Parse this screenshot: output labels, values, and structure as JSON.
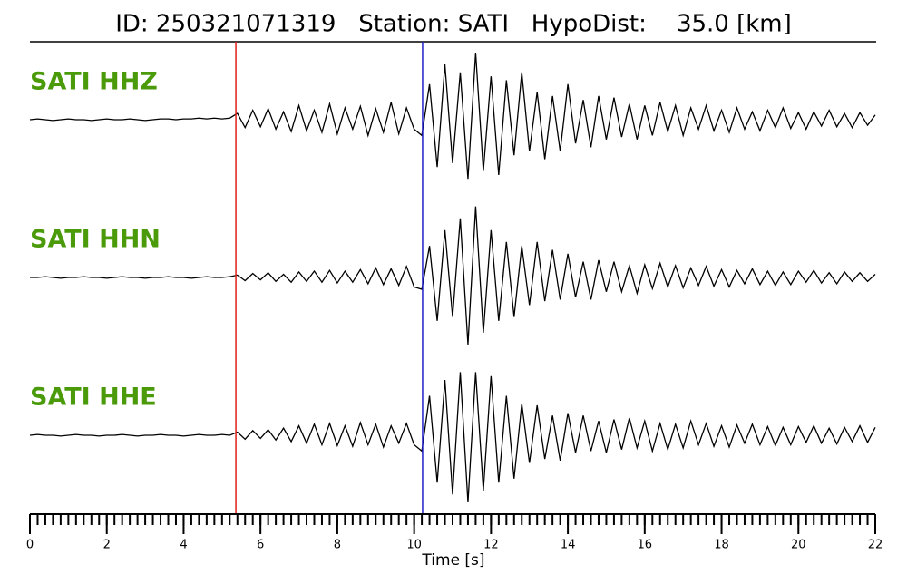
{
  "chart_data": {
    "type": "seismogram",
    "title": "ID: 250321071319   Station: SATI   HypoDist:    35.0 [km]",
    "xlabel": "Time [s]",
    "xlim": [
      0,
      22
    ],
    "xticks": [
      0,
      2,
      4,
      6,
      8,
      10,
      12,
      14,
      16,
      18,
      20,
      22
    ],
    "minor_tick_step": 0.2,
    "ylim": [
      -100,
      100
    ],
    "label_color": "#4a9a0a",
    "markers": [
      {
        "x": 5.36,
        "color": "#e0201b"
      },
      {
        "x": 10.22,
        "color": "#2020c8"
      }
    ],
    "x": [
      0,
      0.2,
      0.4,
      0.6,
      0.8,
      1,
      1.2,
      1.4,
      1.6,
      1.8,
      2,
      2.2,
      2.4,
      2.6,
      2.8,
      3,
      3.2,
      3.4,
      3.6,
      3.8,
      4,
      4.2,
      4.4,
      4.6,
      4.8,
      5,
      5.2,
      5.4,
      5.6,
      5.8,
      6,
      6.2,
      6.4,
      6.6,
      6.8,
      7,
      7.2,
      7.4,
      7.6,
      7.8,
      8,
      8.2,
      8.4,
      8.6,
      8.8,
      9,
      9.2,
      9.4,
      9.6,
      9.8,
      10,
      10.2,
      10.4,
      10.6,
      10.8,
      11,
      11.2,
      11.4,
      11.6,
      11.8,
      12,
      12.2,
      12.4,
      12.6,
      12.8,
      13,
      13.2,
      13.4,
      13.6,
      13.8,
      14,
      14.2,
      14.4,
      14.6,
      14.8,
      15,
      15.2,
      15.4,
      15.6,
      15.8,
      16,
      16.2,
      16.4,
      16.6,
      16.8,
      17,
      17.2,
      17.4,
      17.6,
      17.8,
      18,
      18.2,
      18.4,
      18.6,
      18.8,
      19,
      19.2,
      19.4,
      19.6,
      19.8,
      20,
      20.2,
      20.4,
      20.6,
      20.8,
      21,
      21.2,
      21.4,
      21.6,
      21.8,
      22
    ],
    "series": [
      {
        "name": "SATI HHZ",
        "color": "#000000",
        "values": [
          0,
          1,
          0,
          -1,
          0,
          1,
          0,
          0,
          -1,
          0,
          1,
          0,
          0,
          1,
          0,
          -1,
          0,
          1,
          1,
          0,
          1,
          1,
          2,
          1,
          2,
          1,
          2,
          8,
          -10,
          12,
          -9,
          14,
          -12,
          10,
          -15,
          18,
          -14,
          12,
          -16,
          20,
          -18,
          15,
          -12,
          17,
          -20,
          14,
          -16,
          22,
          -18,
          15,
          -12,
          -20,
          45,
          -60,
          70,
          -55,
          60,
          -75,
          85,
          -65,
          55,
          -70,
          50,
          -45,
          60,
          -40,
          35,
          -50,
          30,
          -40,
          45,
          -30,
          25,
          -35,
          30,
          -25,
          28,
          -22,
          20,
          -25,
          18,
          -20,
          22,
          -15,
          18,
          -20,
          15,
          -12,
          18,
          -14,
          12,
          -16,
          15,
          -12,
          10,
          -14,
          12,
          -10,
          15,
          -11,
          9,
          -12,
          10,
          -8,
          12,
          -9,
          8,
          -10,
          9,
          -7,
          6
        ]
      },
      {
        "name": "SATI HHN",
        "color": "#000000",
        "values": [
          0,
          0,
          1,
          0,
          -1,
          0,
          0,
          1,
          0,
          0,
          -1,
          0,
          1,
          0,
          0,
          -1,
          0,
          0,
          1,
          0,
          0,
          -1,
          0,
          1,
          0,
          0,
          1,
          3,
          -4,
          5,
          -3,
          6,
          -5,
          4,
          -6,
          7,
          -5,
          8,
          -6,
          9,
          -7,
          8,
          -6,
          10,
          -8,
          12,
          -9,
          11,
          -10,
          14,
          -12,
          -15,
          40,
          -55,
          60,
          -50,
          75,
          -85,
          90,
          -70,
          60,
          -55,
          45,
          -50,
          40,
          -35,
          45,
          -30,
          35,
          -28,
          30,
          -25,
          20,
          -28,
          22,
          -18,
          20,
          -18,
          15,
          -20,
          16,
          -14,
          18,
          -12,
          15,
          -13,
          12,
          -10,
          14,
          -11,
          10,
          -12,
          9,
          -8,
          11,
          -9,
          8,
          -10,
          7,
          -9,
          8,
          -6,
          9,
          -7,
          6,
          -8,
          7,
          -5,
          6,
          -5,
          4
        ]
      },
      {
        "name": "SATI HHE",
        "color": "#000000",
        "values": [
          0,
          1,
          0,
          0,
          -1,
          0,
          1,
          0,
          0,
          -1,
          0,
          0,
          1,
          0,
          -1,
          0,
          0,
          1,
          0,
          0,
          -1,
          0,
          1,
          0,
          0,
          1,
          0,
          4,
          -5,
          6,
          -4,
          7,
          -6,
          9,
          -8,
          12,
          -10,
          14,
          -12,
          15,
          -13,
          12,
          -14,
          16,
          -12,
          14,
          -15,
          12,
          -10,
          15,
          -12,
          -20,
          50,
          -60,
          70,
          -75,
          80,
          -85,
          80,
          -70,
          75,
          -60,
          50,
          -55,
          40,
          -35,
          38,
          -30,
          25,
          -32,
          28,
          -22,
          25,
          -20,
          18,
          -22,
          20,
          -18,
          22,
          -16,
          18,
          -20,
          15,
          -18,
          14,
          -16,
          18,
          -12,
          15,
          -14,
          12,
          -15,
          13,
          -10,
          14,
          -12,
          11,
          -13,
          10,
          -12,
          11,
          -9,
          12,
          -10,
          9,
          -11,
          10,
          -8,
          12,
          -9,
          10
        ]
      }
    ]
  }
}
